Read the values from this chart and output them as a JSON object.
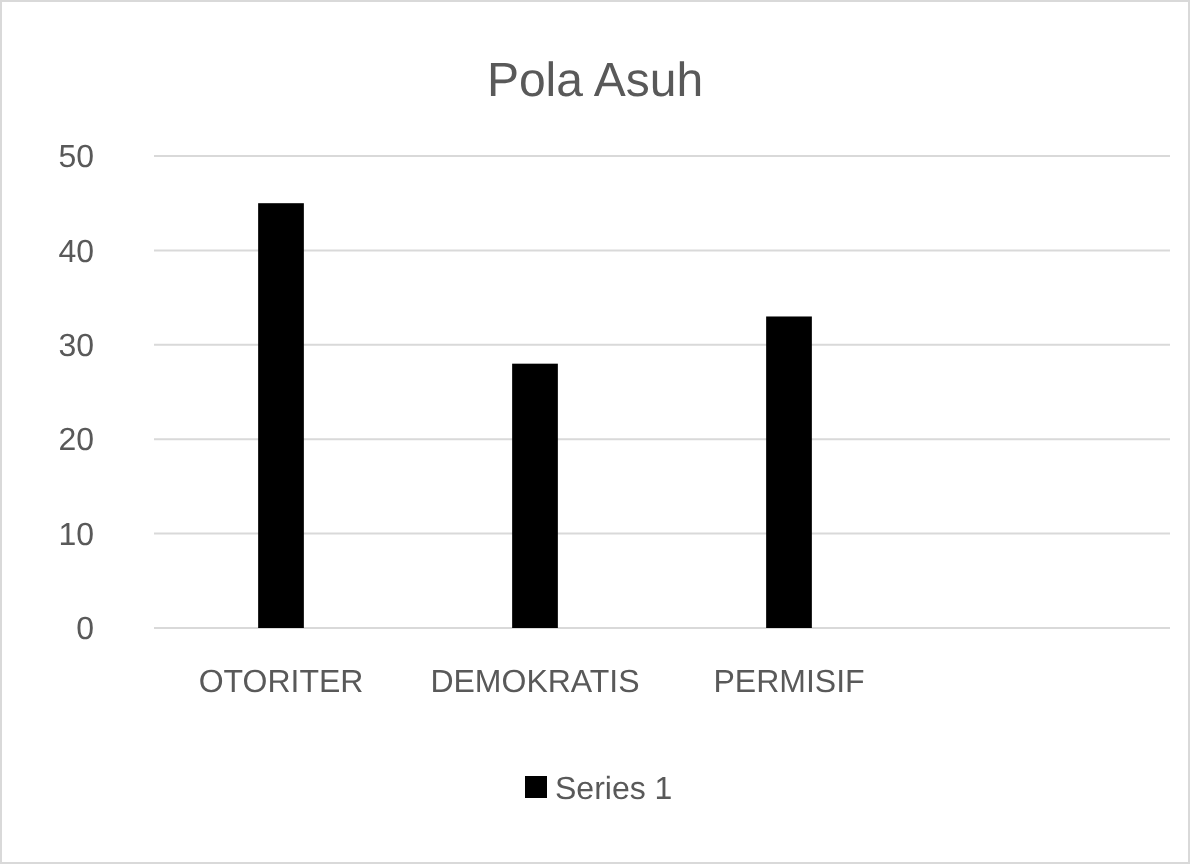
{
  "chart_data": {
    "type": "bar",
    "title": "Pola Asuh",
    "categories": [
      "OTORITER",
      "DEMOKRATIS",
      "PERMISIF",
      null
    ],
    "series": [
      {
        "name": "Series 1",
        "color": "#000000",
        "values": [
          45,
          28,
          33,
          null
        ]
      }
    ],
    "ylim": [
      0,
      50
    ],
    "yticks": [
      0,
      10,
      20,
      30,
      40,
      50
    ],
    "grid": "y",
    "legend": "bottom"
  }
}
